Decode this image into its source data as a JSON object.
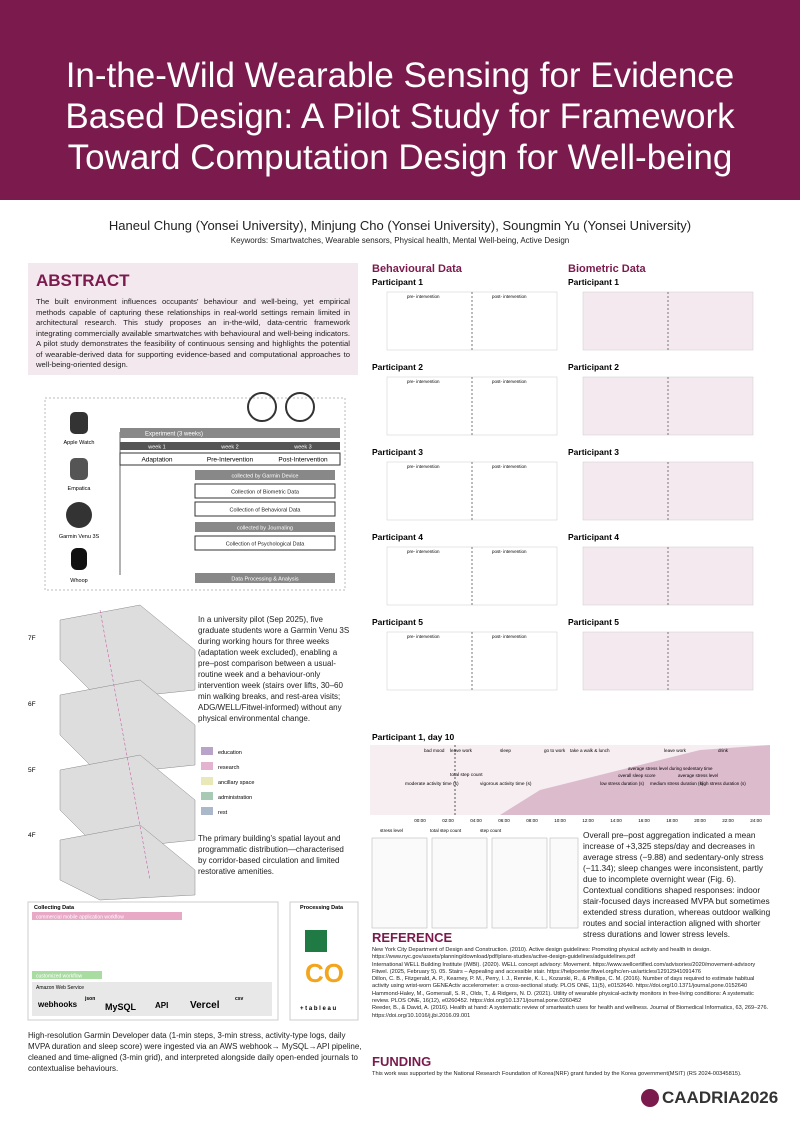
{
  "header": {
    "title": "In-the-Wild Wearable Sensing for Evidence Based Design: A Pilot Study for Framework Toward Computation Design for Well-being",
    "authors": "Haneul Chung (Yonsei University), Minjung Cho (Yonsei University), Soungmin Yu (Yonsei University)",
    "keywords": "Keywords: Smartwatches, Wearable sensors, Physical health, Mental Well-being, Active Design"
  },
  "abstract": {
    "heading": "ABSTRACT",
    "text": "The built environment influences occupants' behaviour and well-being, yet empirical methods capable of capturing these relationships in real-world settings remain limited in architectural research. This study proposes an in-the-wild, data-centric framework integrating commercially available smartwatches with behavioural and well-being indicators. A pilot study demonstrates the feasibility of continuous sensing and highlights the potential of wearable-derived data for supporting evidence-based and computational approaches to well-being-oriented design."
  },
  "framework": {
    "devices": [
      "Apple Watch",
      "Empatica",
      "Garmin Venu 3S",
      "Whoop"
    ],
    "experiment": "Experiment (3 weeks)",
    "weeks": [
      "week 1",
      "week 2",
      "week 3"
    ],
    "phases": [
      "Adaptation",
      "Pre-Intervention",
      "Post-Intervention"
    ],
    "garmin": "collected by Garmin Device",
    "biometric": "Collection of Biometric Data",
    "behavioral": "Collection of Behavioral Data",
    "journaling": "collected by Journaling",
    "psychological": "Collection of Psychological Data",
    "processing": "Data Processing & Analysis"
  },
  "pilot_text": "In a university pilot (Sep 2025), five graduate students wore a Garmin Venu 3S during working hours for three weeks (adaptation week excluded), enabling a pre–post comparison between a usual-routine week and a behaviour-only intervention week (stairs over lifts, 30–60 min walking breaks, and rest-area visits; ADG/WELL/Fitwel-informed) without any physical environmental change.",
  "floors": [
    "7F",
    "6F",
    "5F",
    "4F"
  ],
  "space_legend": [
    "education",
    "research",
    "ancillary space",
    "administration",
    "rest"
  ],
  "plan_caption": "The primary building's spatial layout and programmatic distribution—characterised by corridor-based circulation and limited restorative amenities.",
  "dataflow": {
    "collecting": "Collecting Data",
    "processing": "Processing Data",
    "workflow": "commercial mobile application workflow",
    "customized": "customized workflow",
    "aws": "Amazon Web Service",
    "webhooks": "webhooks",
    "json": "json",
    "mysql": "MySQL",
    "api": "API",
    "vercel": "Vercel",
    "csv": "csv",
    "tableau": "+ t a b l e a u"
  },
  "pipeline_text": "High-resolution Garmin Developer data (1-min steps, 3-min stress, activity-type logs, daily MVPA duration and sleep score) were ingested via an AWS webhook→ MySQL→API pipeline, cleaned and time-aligned (3-min grid), and interpreted alongside daily open-ended journals to contextualise behaviours.",
  "results": {
    "behavioural": "Behavioural Data",
    "biometric": "Biometric Data",
    "participants": [
      "Participant 1",
      "Participant 2",
      "Participant 3",
      "Participant 4",
      "Participant 5"
    ],
    "phase_labels": [
      "pre- intervention",
      "post- intervention"
    ],
    "behavioural_legend": [
      "total step count",
      "moderate activity time (s)",
      "vigorous activity time (s)"
    ],
    "biometric_legend": [
      "average stress level during sedentary time",
      "overall sleep score",
      "average stress level",
      "low stress duration (s)",
      "medium stress duration (s)",
      "high stress duration (s)"
    ],
    "day_title": "Participant 1, day 10",
    "day_events": [
      "bad mood",
      "leave work",
      "sleep",
      "go to work",
      "take a walk & lunch",
      "leave work",
      "drink"
    ],
    "day_times": [
      "00:00",
      "02:00",
      "04:00",
      "06:00",
      "08:00",
      "10:00",
      "12:00",
      "14:00",
      "16:00",
      "18:00",
      "20:00",
      "22:00",
      "24:00"
    ],
    "box_legend": [
      "stress level",
      "total step count",
      "step count"
    ]
  },
  "findings": "Overall pre–post aggregation indicated a mean increase of +3,325 steps/day and decreases in average stress (−9.88) and sedentary-only stress (−11.34); sleep changes were inconsistent, partly due to incomplete overnight wear (Fig. 6). Contextual conditions shaped responses: indoor stair-focused days increased MVPA but sometimes extended stress duration, whereas outdoor walking routes and social interaction aligned with shorter stress durations and lower stress levels.",
  "reference": {
    "heading": "REFERENCE",
    "items": [
      "New York City Department of Design and Construction. (2010). Active design guidelines: Promoting physical activity and health in design. https://www.nyc.gov/assets/planning/download/pdf/plans-studies/active-design-guidelines/adguidelines.pdf",
      "International WELL Building Institute (IWBI). (2020). WELL concept advisory: Movement. https://www.wellcertified.com/advisories/2020/movement-advisory",
      "Fitwel. (2025, February 5). 05. Stairs – Appealing and accessible stair. https://helpcenter.fitwel.org/hc/en-us/articles/12912941091476",
      "Dillon, C. B., Fitzgerald, A. P., Kearney, P. M., Perry, I. J., Rennie, K. L., Kozarski, R., & Phillips, C. M. (2016). Number of days required to estimate habitual activity using wrist-worn GENEActiv accelerometer: a cross-sectional study. PLOS ONE, 11(5), e0152640. https://doi.org/10.1371/journal.pone.0152640",
      "Hammond-Haley, M., Gomersall, S. R., Olds, T., & Ridgers, N. D. (2021). Utility of wearable physical-activity monitors in free-living conditions: A systematic review. PLOS ONE, 16(12), e0260452. https://doi.org/10.1371/journal.pone.0260452",
      "Reeder, B., & David, A. (2016). Health at hand: A systematic review of smartwatch uses for health and wellness. Journal of Biomedical Informatics, 63, 269–276. https://doi.org/10.1016/j.jbi.2016.09.001"
    ]
  },
  "funding": {
    "heading": "FUNDING",
    "text": "This work was supported by the National Research Foundation of Korea(NRF) grant funded by the Korea government(MSIT) (RS 2024-00345815)."
  },
  "logo": "CAADRIA2026"
}
